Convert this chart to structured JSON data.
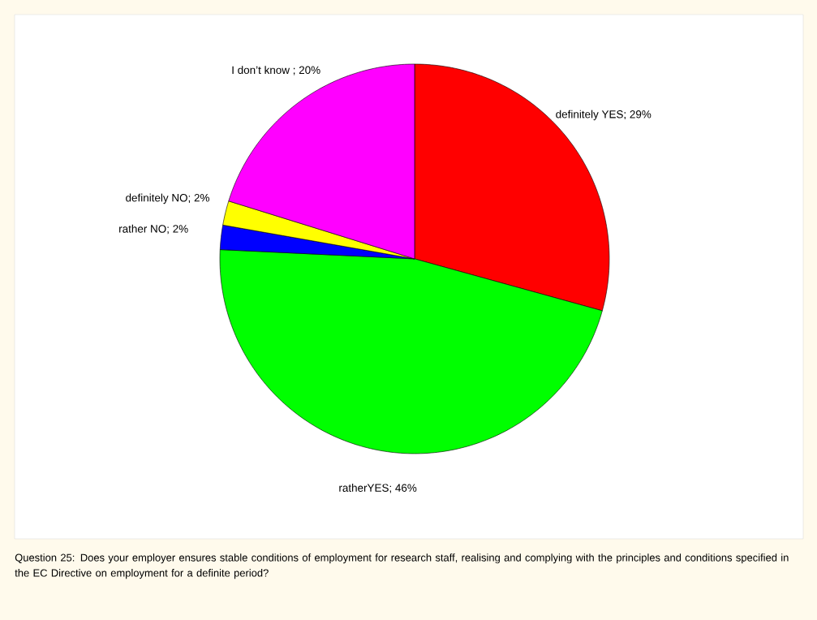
{
  "chart_data": {
    "type": "pie",
    "categories": [
      "definitely YES; 29%",
      "ratherYES; 46%",
      "rather NO; 2%",
      "definitely NO; 2%",
      "I don’t know ; 20%"
    ],
    "values": [
      29,
      46,
      2,
      2,
      20
    ],
    "colors": [
      "#ff0000",
      "#00ff00",
      "#0000ff",
      "#ffff00",
      "#ff00ff"
    ],
    "annotations": [
      "Question 25: Does your employer ensures stable conditions of employment for research staff, realising and complying with the principles and conditions specified in the EC Directive on employment for a definite period?"
    ]
  }
}
